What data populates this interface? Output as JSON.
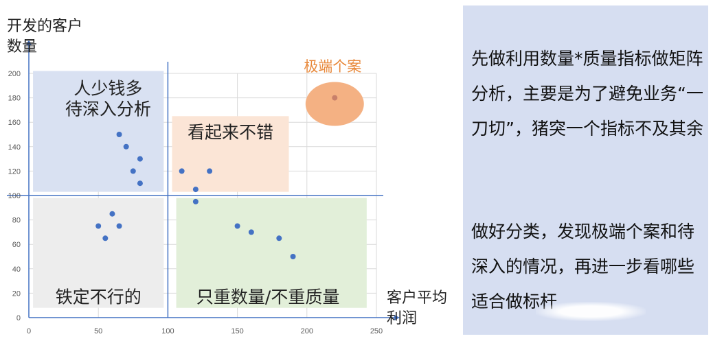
{
  "chart_data": {
    "type": "scatter",
    "ylabel": "开发的客户数量",
    "xlabel": "客户平均利润",
    "xlim": [
      0,
      250
    ],
    "ylim": [
      0,
      200
    ],
    "x_ticks": [
      0,
      50,
      100,
      150,
      200,
      250
    ],
    "y_ticks": [
      0,
      20,
      40,
      60,
      80,
      100,
      120,
      140,
      160,
      180,
      200
    ],
    "grid": true,
    "divider": {
      "x": 100,
      "y": 100
    },
    "points": [
      {
        "x": 65,
        "y": 150
      },
      {
        "x": 70,
        "y": 140
      },
      {
        "x": 80,
        "y": 130
      },
      {
        "x": 75,
        "y": 120
      },
      {
        "x": 80,
        "y": 110
      },
      {
        "x": 110,
        "y": 120
      },
      {
        "x": 130,
        "y": 120
      },
      {
        "x": 120,
        "y": 105
      },
      {
        "x": 120,
        "y": 95
      },
      {
        "x": 60,
        "y": 85
      },
      {
        "x": 50,
        "y": 75
      },
      {
        "x": 65,
        "y": 75
      },
      {
        "x": 55,
        "y": 65
      },
      {
        "x": 150,
        "y": 75
      },
      {
        "x": 160,
        "y": 70
      },
      {
        "x": 180,
        "y": 65
      },
      {
        "x": 190,
        "y": 50
      },
      {
        "x": 220,
        "y": 180
      }
    ],
    "quadrants": [
      {
        "label_lines": [
          "人少钱多",
          "待深入分析"
        ],
        "x0": 3,
        "x1": 97,
        "y0": 103,
        "y1": 202,
        "fill": "#d9e1f2",
        "text_x": 57,
        "text_y1": 188,
        "text_y2": 171
      },
      {
        "label_lines": [
          "看起来不错"
        ],
        "x0": 103,
        "x1": 187,
        "y0": 103,
        "y1": 165,
        "fill": "#fbe5d6",
        "text_x": 145,
        "text_y1": 152
      },
      {
        "label_lines": [
          "铁定不行的"
        ],
        "x0": 3,
        "x1": 97,
        "y0": 8,
        "y1": 98,
        "fill": "#ededed",
        "text_x": 50,
        "text_y1": 17
      },
      {
        "label_lines": [
          "只重数量/不重质量"
        ],
        "x0": 106,
        "x1": 243,
        "y0": 8,
        "y1": 98,
        "fill": "#e2efd9",
        "text_x": 172,
        "text_y1": 17
      }
    ],
    "outlier": {
      "label": "极端个案",
      "cx": 220,
      "cy": 175,
      "rx": 21,
      "ry": 18,
      "color": "#f4b183",
      "text_color": "#e8883a"
    },
    "colors": {
      "point": "#4472c4",
      "axis": "#4472c4",
      "grid": "#d9d9d9",
      "tick": "#595959"
    }
  },
  "panel": {
    "paragraph1": "先做利用数量*质量指标做矩阵分析，主要是为了避免业务“一刀切”，猪突一个指标不及其余",
    "paragraph2": "做好分类，发现极端个案和待深入的情况，再进一步看哪些适合做标杆"
  }
}
